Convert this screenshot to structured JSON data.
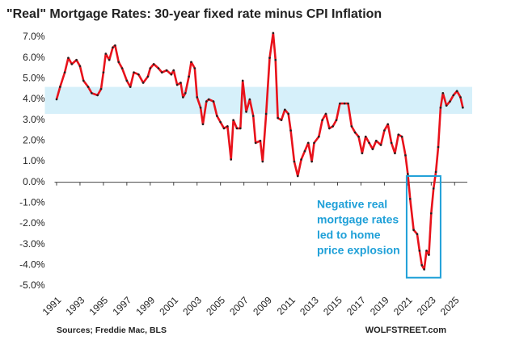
{
  "chart_data": {
    "type": "line",
    "title": "\"Real\" Mortgage Rates: 30-year fixed rate minus CPI Inflation",
    "source": "Sources; Freddie Mac, BLS",
    "credit": "WOLFSTREET.com",
    "xlim": [
      1990,
      2026.5
    ],
    "ylim": [
      -5,
      7
    ],
    "xticks": [
      1991,
      1993,
      1995,
      1997,
      1999,
      2001,
      2003,
      2005,
      2007,
      2009,
      2011,
      2013,
      2015,
      2017,
      2019,
      2021,
      2023,
      2025
    ],
    "yticks": [
      {
        "value": -5,
        "label": "-5.0%"
      },
      {
        "value": -4,
        "label": "-4.0%"
      },
      {
        "value": -3,
        "label": "-3.0%"
      },
      {
        "value": -2,
        "label": "-2.0%"
      },
      {
        "value": -1,
        "label": "-1.0%"
      },
      {
        "value": 0,
        "label": "0.0%"
      },
      {
        "value": 1,
        "label": "1.0%"
      },
      {
        "value": 2,
        "label": "2.0%"
      },
      {
        "value": 3,
        "label": "3.0%"
      },
      {
        "value": 4,
        "label": "4.0%"
      },
      {
        "value": 5,
        "label": "5.0%"
      },
      {
        "value": 6,
        "label": "6.0%"
      },
      {
        "value": 7,
        "label": "7.0%"
      }
    ],
    "shaded_range": {
      "y": [
        3.3,
        4.6
      ],
      "color": "#d6f0fa"
    },
    "annotation_box": {
      "x": [
        2020.9,
        2023.8
      ],
      "y": [
        -4.6,
        0.3
      ],
      "color": "#1fa0d8"
    },
    "annotation": {
      "lines": [
        "Negative real",
        "mortgage rates",
        "led to home",
        "price explosion"
      ],
      "color": "#1fa0d8"
    },
    "series": [
      {
        "name": "Real mortgage rate",
        "color": "#e8121b",
        "marker_color": "#222222",
        "x": [
          1991.0,
          1991.3,
          1991.7,
          1992.0,
          1992.3,
          1992.7,
          1993.0,
          1993.3,
          1993.7,
          1994.0,
          1994.5,
          1994.8,
          1995.0,
          1995.2,
          1995.5,
          1995.8,
          1996.0,
          1996.3,
          1996.6,
          1997.0,
          1997.3,
          1997.6,
          1998.0,
          1998.4,
          1998.8,
          1999.0,
          1999.3,
          1999.7,
          2000.0,
          2000.4,
          2000.8,
          2001.0,
          2001.3,
          2001.6,
          2001.8,
          2002.0,
          2002.3,
          2002.5,
          2002.8,
          2003.0,
          2003.3,
          2003.5,
          2003.8,
          2004.0,
          2004.4,
          2004.7,
          2005.0,
          2005.3,
          2005.6,
          2005.9,
          2006.1,
          2006.4,
          2006.7,
          2006.9,
          2007.2,
          2007.5,
          2007.8,
          2008.0,
          2008.4,
          2008.6,
          2008.9,
          2009.2,
          2009.5,
          2009.7,
          2009.9,
          2010.2,
          2010.5,
          2010.8,
          2011.0,
          2011.3,
          2011.6,
          2011.9,
          2012.2,
          2012.5,
          2012.8,
          2013.0,
          2013.4,
          2013.7,
          2014.0,
          2014.3,
          2014.6,
          2014.9,
          2015.2,
          2015.6,
          2015.9,
          2016.2,
          2016.5,
          2016.8,
          2017.1,
          2017.4,
          2017.7,
          2018.0,
          2018.3,
          2018.7,
          2019.0,
          2019.3,
          2019.6,
          2019.9,
          2020.2,
          2020.5,
          2020.8,
          2021.0,
          2021.2,
          2021.5,
          2021.8,
          2022.0,
          2022.2,
          2022.4,
          2022.6,
          2022.8,
          2023.0,
          2023.2,
          2023.4,
          2023.6,
          2023.8,
          2024.0,
          2024.3,
          2024.6,
          2024.9,
          2025.2,
          2025.5,
          2025.7
        ],
        "values": [
          4.0,
          4.6,
          5.3,
          6.0,
          5.7,
          5.9,
          5.6,
          4.9,
          4.6,
          4.3,
          4.2,
          4.5,
          5.3,
          6.2,
          5.9,
          6.5,
          6.6,
          5.8,
          5.5,
          4.9,
          4.6,
          5.3,
          5.2,
          4.8,
          5.1,
          5.5,
          5.7,
          5.5,
          5.3,
          5.4,
          5.2,
          5.4,
          4.7,
          4.8,
          4.1,
          4.3,
          5.1,
          5.8,
          5.5,
          4.1,
          3.6,
          2.8,
          3.9,
          4.0,
          3.9,
          3.2,
          2.9,
          2.6,
          2.7,
          1.1,
          3.0,
          2.6,
          2.6,
          4.9,
          3.4,
          4.0,
          3.2,
          1.9,
          2.0,
          1.0,
          3.3,
          6.0,
          7.2,
          5.9,
          3.1,
          3.0,
          3.5,
          3.3,
          2.5,
          1.0,
          0.3,
          1.1,
          1.5,
          1.9,
          1.0,
          1.9,
          2.2,
          3.0,
          3.3,
          2.6,
          2.7,
          3.0,
          3.8,
          3.8,
          3.8,
          2.7,
          2.4,
          2.2,
          1.4,
          2.2,
          1.9,
          1.6,
          2.0,
          1.8,
          2.5,
          2.8,
          1.9,
          1.4,
          2.3,
          2.2,
          1.3,
          0.4,
          -0.8,
          -2.3,
          -2.5,
          -3.3,
          -4.0,
          -4.2,
          -3.3,
          -3.5,
          -1.5,
          -0.3,
          0.5,
          1.7,
          3.6,
          4.3,
          3.7,
          3.9,
          4.2,
          4.4,
          4.1,
          3.6
        ]
      }
    ]
  }
}
